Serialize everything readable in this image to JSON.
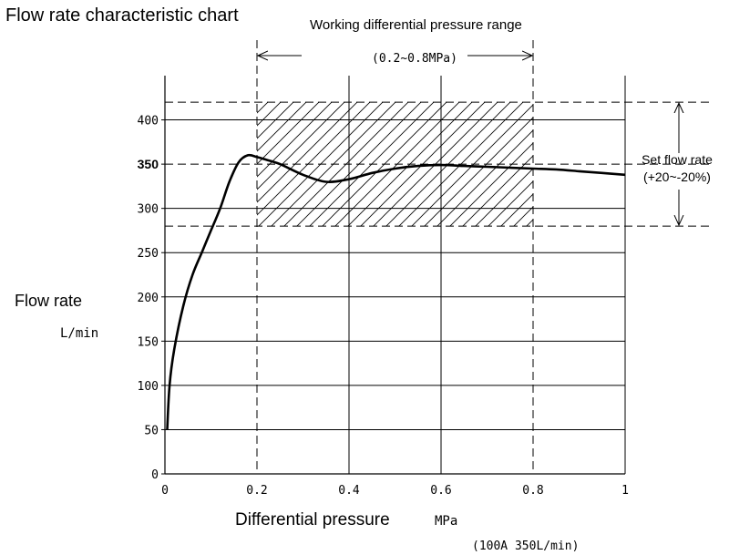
{
  "chart_data": {
    "type": "line",
    "title": "Flow rate characteristic chart",
    "xlabel": "Differential pressure",
    "xunit": "MPa",
    "ylabel": "Flow rate",
    "yunit": "L/min",
    "xlim": [
      0,
      1
    ],
    "ylim": [
      0,
      450
    ],
    "x_ticks": [
      "0",
      "0.2",
      "0.4",
      "0.6",
      "0.8",
      "1"
    ],
    "y_ticks": [
      "0",
      "50",
      "100",
      "150",
      "200",
      "250",
      "300",
      "350",
      "400"
    ],
    "y_tick_bold": "350",
    "grid": true,
    "series": [
      {
        "x": [
          0.005,
          0.01,
          0.02,
          0.04,
          0.06,
          0.08,
          0.1,
          0.12,
          0.14,
          0.16,
          0.18,
          0.2,
          0.22,
          0.25,
          0.3,
          0.35,
          0.4,
          0.45,
          0.5,
          0.55,
          0.6,
          0.65,
          0.7,
          0.75,
          0.8,
          0.85,
          0.9,
          0.95,
          1.0
        ],
        "y": [
          50,
          100,
          140,
          190,
          225,
          250,
          275,
          300,
          330,
          352,
          360,
          358,
          355,
          350,
          338,
          330,
          333,
          340,
          345,
          348,
          349,
          348,
          347,
          346,
          345,
          344,
          342,
          340,
          338
        ]
      }
    ],
    "working_range": {
      "label": "Working differential pressure range",
      "value_text": "(0.2~0.8MPa)",
      "x": [
        0.2,
        0.8
      ]
    },
    "set_flow_band": {
      "label": "Set flow rate",
      "tolerance_text": "(+20~-20%)",
      "y": [
        280,
        420
      ],
      "nominal": 350
    },
    "model_note": "(100A 350L/min)"
  }
}
